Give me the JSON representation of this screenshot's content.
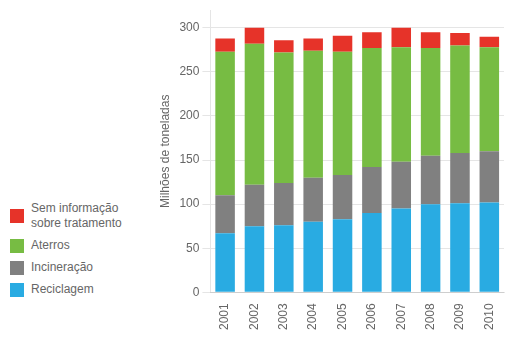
{
  "chart_data": {
    "type": "bar",
    "y_label": "Milhões de toneladas",
    "categories": [
      "2001",
      "2002",
      "2003",
      "2004",
      "2005",
      "2006",
      "2007",
      "2008",
      "2009",
      "2010"
    ],
    "series": [
      {
        "name": "Reciclagem",
        "color": "#29ABE2",
        "values": [
          67,
          75,
          76,
          80,
          83,
          90,
          95,
          100,
          101,
          102
        ]
      },
      {
        "name": "Incineração",
        "color": "#808080",
        "values": [
          43,
          47,
          48,
          50,
          50,
          52,
          53,
          55,
          57,
          58
        ]
      },
      {
        "name": "Aterros",
        "color": "#77BC43",
        "values": [
          163,
          160,
          148,
          144,
          140,
          135,
          130,
          122,
          122,
          118
        ]
      },
      {
        "name": "Sem informação\nsobre tratamento",
        "color": "#E63329",
        "values": [
          15,
          18,
          14,
          14,
          18,
          18,
          22,
          18,
          14,
          12
        ]
      }
    ],
    "stacked": true,
    "ylim": [
      0,
      320
    ],
    "yticks": [
      0,
      50,
      100,
      150,
      200,
      250,
      300
    ],
    "grid": true,
    "legend": "lower left"
  }
}
